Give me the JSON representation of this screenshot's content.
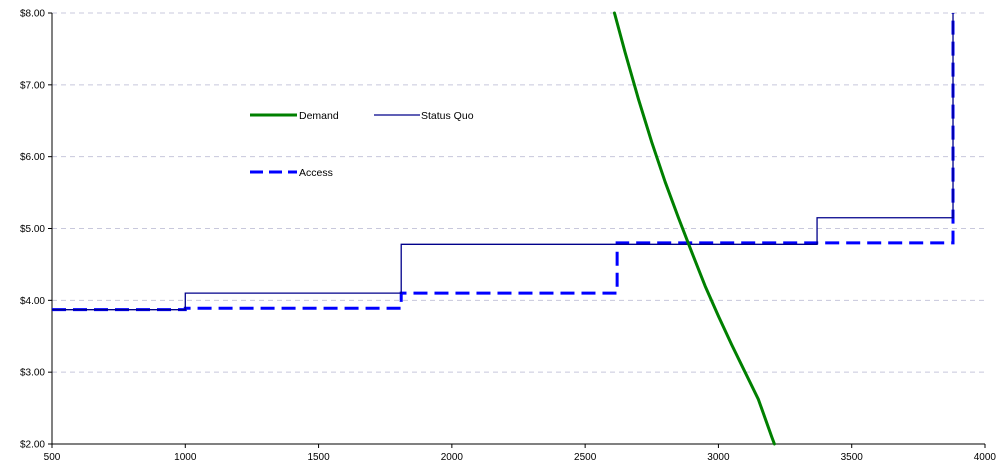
{
  "chart_data": {
    "type": "line",
    "title": "",
    "xlabel": "",
    "ylabel": "",
    "xlim": [
      500,
      4000
    ],
    "ylim": [
      2.0,
      8.0
    ],
    "x_ticks": [
      500,
      1000,
      1500,
      2000,
      2500,
      3000,
      3500,
      4000
    ],
    "x_tick_labels": [
      "500",
      "1000",
      "1500",
      "2000",
      "2500",
      "3000",
      "3500",
      "4000"
    ],
    "y_ticks": [
      2,
      3,
      4,
      5,
      6,
      7,
      8
    ],
    "y_tick_labels": [
      "$2.00",
      "$3.00",
      "$4.00",
      "$5.00",
      "$6.00",
      "$7.00",
      "$8.00"
    ],
    "grid": {
      "horizontal": true,
      "vertical": false,
      "style": "dashed"
    },
    "legend_position": "upper-left inside plot",
    "series": [
      {
        "name": "Demand",
        "color": "#008000",
        "style": "solid-thick",
        "step": false,
        "points": [
          [
            2610,
            8.0
          ],
          [
            2650,
            7.45
          ],
          [
            2700,
            6.8
          ],
          [
            2750,
            6.2
          ],
          [
            2800,
            5.65
          ],
          [
            2850,
            5.15
          ],
          [
            2900,
            4.67
          ],
          [
            2950,
            4.2
          ],
          [
            3000,
            3.78
          ],
          [
            3050,
            3.38
          ],
          [
            3100,
            3.0
          ],
          [
            3150,
            2.62
          ],
          [
            3200,
            2.1
          ],
          [
            3210,
            2.0
          ]
        ]
      },
      {
        "name": "Status Quo",
        "color": "#00008B",
        "style": "solid-thin",
        "step": true,
        "points": [
          [
            500,
            3.87
          ],
          [
            1000,
            3.87
          ],
          [
            1000,
            4.1
          ],
          [
            1810,
            4.1
          ],
          [
            1810,
            4.78
          ],
          [
            3370,
            4.78
          ],
          [
            3370,
            5.15
          ],
          [
            3880,
            5.15
          ],
          [
            3880,
            8.0
          ]
        ]
      },
      {
        "name": "Access",
        "color": "#0000FF",
        "style": "dashed-thick",
        "step": true,
        "points": [
          [
            500,
            3.87
          ],
          [
            1000,
            3.87
          ],
          [
            1000,
            3.89
          ],
          [
            1810,
            3.89
          ],
          [
            1810,
            4.1
          ],
          [
            2620,
            4.1
          ],
          [
            2620,
            4.8
          ],
          [
            3880,
            4.8
          ],
          [
            3880,
            8.0
          ]
        ]
      }
    ]
  }
}
